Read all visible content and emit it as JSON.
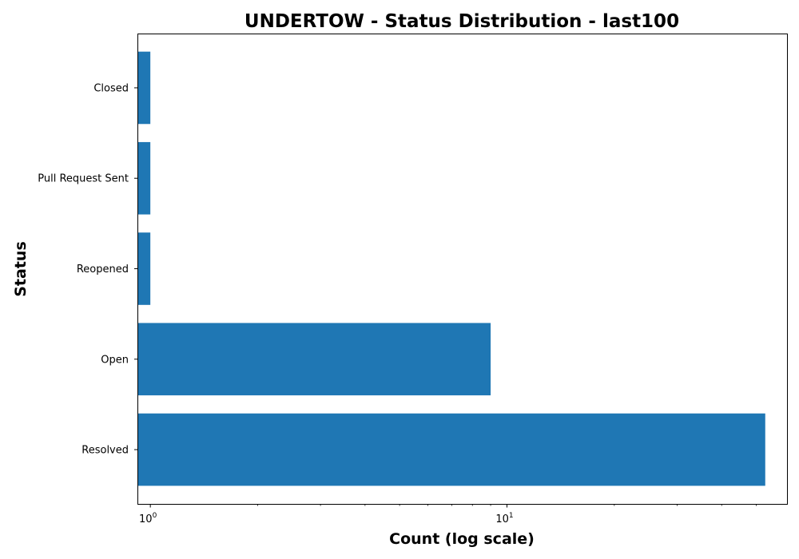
{
  "chart_data": {
    "type": "bar",
    "orientation": "horizontal",
    "title": "UNDERTOW - Status Distribution - last100",
    "xlabel": "Count (log scale)",
    "ylabel": "Status",
    "x_scale": "log",
    "xlim": [
      0.92,
      61
    ],
    "x_major_ticks": [
      {
        "value": 1,
        "base": "10",
        "exp": "0"
      },
      {
        "value": 10,
        "base": "10",
        "exp": "1"
      }
    ],
    "x_minor_ticks": [
      2,
      3,
      4,
      5,
      6,
      7,
      8,
      9,
      20,
      30,
      40,
      50
    ],
    "categories": [
      "Resolved",
      "Open",
      "Reopened",
      "Pull Request Sent",
      "Closed"
    ],
    "values": [
      53,
      9,
      1,
      1,
      1
    ],
    "bar_color": "#1f77b4",
    "grid": false,
    "legend": "none"
  }
}
